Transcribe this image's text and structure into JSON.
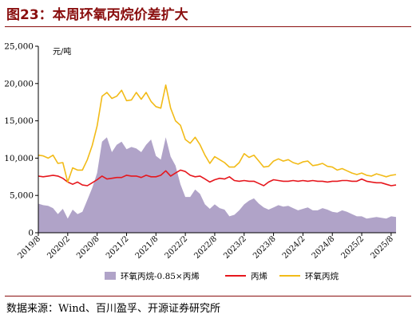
{
  "figure": {
    "title": "图23：本周环氧丙烷价差扩大",
    "source": "数据来源：Wind、百川盈孚、开源证券研究所"
  },
  "colors": {
    "title": "#8a0f0f",
    "spread": "#b0a3c8",
    "propylene": "#e6171d",
    "propylene_oxide": "#f2bb18"
  },
  "chart_data": {
    "type": "line",
    "title": "",
    "ylabel": "元/吨",
    "xlabel": "",
    "ylim": [
      0,
      25000
    ],
    "yticks": [
      0,
      5000,
      10000,
      15000,
      20000,
      25000
    ],
    "ytick_labels": [
      "0",
      "5,000",
      "10,000",
      "15,000",
      "20,000",
      "25,000"
    ],
    "xlim": [
      "2019-08",
      "2025-09"
    ],
    "xticks": [
      "2019/8",
      "2020/2",
      "2020/8",
      "2021/2",
      "2021/8",
      "2022/2",
      "2022/8",
      "2023/2",
      "2023/8",
      "2024/2",
      "2024/8",
      "2025/2",
      "2025/8"
    ],
    "grid": false,
    "legend_position": "bottom",
    "x": [
      "2019-08",
      "2019-09",
      "2019-10",
      "2019-11",
      "2019-12",
      "2020-01",
      "2020-02",
      "2020-03",
      "2020-04",
      "2020-05",
      "2020-06",
      "2020-07",
      "2020-08",
      "2020-09",
      "2020-10",
      "2020-11",
      "2020-12",
      "2021-01",
      "2021-02",
      "2021-03",
      "2021-04",
      "2021-05",
      "2021-06",
      "2021-07",
      "2021-08",
      "2021-09",
      "2021-10",
      "2021-11",
      "2021-12",
      "2022-01",
      "2022-02",
      "2022-03",
      "2022-04",
      "2022-05",
      "2022-06",
      "2022-07",
      "2022-08",
      "2022-09",
      "2022-10",
      "2022-11",
      "2022-12",
      "2023-01",
      "2023-02",
      "2023-03",
      "2023-04",
      "2023-05",
      "2023-06",
      "2023-07",
      "2023-08",
      "2023-09",
      "2023-10",
      "2023-11",
      "2023-12",
      "2024-01",
      "2024-02",
      "2024-03",
      "2024-04",
      "2024-05",
      "2024-06",
      "2024-07",
      "2024-08",
      "2024-09",
      "2024-10",
      "2024-11",
      "2024-12",
      "2025-01",
      "2025-02",
      "2025-03",
      "2025-04",
      "2025-05",
      "2025-06",
      "2025-07",
      "2025-08",
      "2025-09"
    ],
    "series": [
      {
        "name": "环氧丙烷-0.85×丙烯",
        "kind": "area",
        "values": [
          3900,
          3700,
          3600,
          3300,
          2500,
          3200,
          1900,
          3100,
          2500,
          2800,
          4400,
          6000,
          8000,
          12200,
          12800,
          10800,
          11800,
          12200,
          11200,
          11500,
          11300,
          10800,
          11800,
          12500,
          10300,
          9800,
          12800,
          10200,
          9000,
          6500,
          4800,
          4800,
          5800,
          5200,
          3800,
          3200,
          3800,
          3300,
          3100,
          2200,
          2400,
          3000,
          3800,
          4300,
          4600,
          3900,
          3400,
          3100,
          3400,
          3700,
          3500,
          3600,
          3300,
          3000,
          3200,
          3400,
          3000,
          3000,
          3300,
          3100,
          2800,
          2700,
          3000,
          2800,
          2500,
          2200,
          2200,
          1900,
          2000,
          2100,
          2000,
          1900,
          2200,
          2100
        ]
      },
      {
        "name": "丙烯",
        "kind": "line",
        "values": [
          7600,
          7500,
          7600,
          7700,
          7600,
          7300,
          6800,
          6500,
          6800,
          6400,
          6300,
          6700,
          7100,
          7600,
          7200,
          7300,
          7400,
          7400,
          7700,
          7600,
          7600,
          7400,
          7700,
          7500,
          7500,
          7700,
          8300,
          7600,
          8000,
          8400,
          8200,
          7700,
          7500,
          7600,
          7200,
          6800,
          7100,
          7300,
          7200,
          7500,
          7000,
          6900,
          7000,
          6900,
          6900,
          6600,
          6300,
          6800,
          7100,
          7000,
          6900,
          6900,
          7000,
          6900,
          7000,
          6900,
          7000,
          6900,
          6900,
          6800,
          6900,
          6900,
          7000,
          7000,
          6900,
          6900,
          7200,
          6900,
          6800,
          6700,
          6700,
          6500,
          6300,
          6400
        ]
      },
      {
        "name": "环氧丙烷",
        "kind": "line",
        "values": [
          10400,
          10300,
          10000,
          10400,
          9300,
          9400,
          6800,
          8700,
          8400,
          8400,
          9800,
          11700,
          14300,
          18300,
          18800,
          18000,
          18300,
          19100,
          17700,
          17800,
          18800,
          17900,
          18800,
          17600,
          16900,
          16700,
          19800,
          16700,
          15000,
          14400,
          12500,
          12000,
          12800,
          11800,
          10400,
          9300,
          10200,
          9800,
          9400,
          8800,
          8800,
          9400,
          10600,
          10100,
          10400,
          9600,
          8800,
          8900,
          9600,
          9900,
          9600,
          9800,
          9400,
          9200,
          9500,
          9600,
          9000,
          9100,
          9300,
          8900,
          8800,
          8400,
          8600,
          8300,
          8000,
          7800,
          8000,
          7700,
          7600,
          7900,
          7700,
          7500,
          7700,
          7800
        ]
      }
    ]
  }
}
